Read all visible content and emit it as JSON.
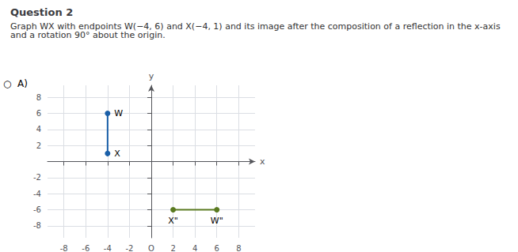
{
  "chart_data": {
    "type": "line",
    "title": "Question 2",
    "subtitle": "Graph WX with endpoints W(−4, 6) and X(−4, 1) and its image after the composition of a reflection in the x-axis and a rotation 90° about the origin.",
    "annotations": [
      "○  A)"
    ],
    "xlabel": "x",
    "ylabel": "y",
    "xlim": [
      -9.5,
      9.5
    ],
    "ylim": [
      -9.5,
      9.5
    ],
    "xticks": [
      -8,
      -6,
      -4,
      -2,
      {
        "value": 0,
        "label": "O"
      },
      2,
      4,
      6,
      8
    ],
    "yticks": [
      -8,
      -6,
      -4,
      -2,
      2,
      4,
      6,
      8
    ],
    "grid": true,
    "marker": "circle",
    "series": [
      {
        "color": "#1a5fa8",
        "x": [
          -4,
          -4
        ],
        "values": [
          6,
          1
        ],
        "labels": [
          "W",
          "X"
        ]
      },
      {
        "color": "#5a7a20",
        "x": [
          2,
          6
        ],
        "values": [
          -6,
          -6
        ],
        "labels": [
          "X\"",
          "W\""
        ]
      }
    ]
  }
}
